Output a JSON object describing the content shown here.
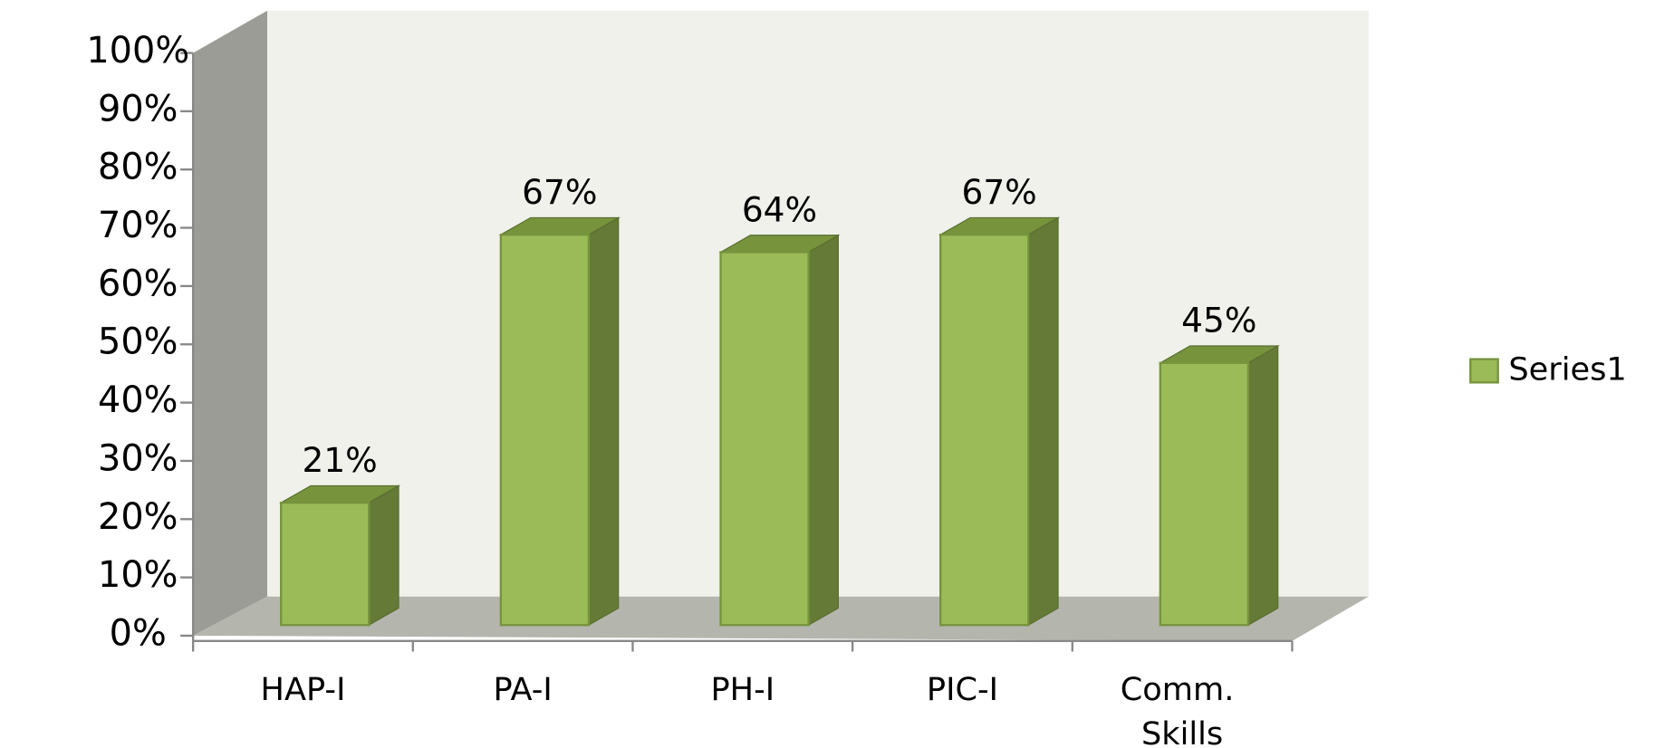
{
  "chart_data": {
    "type": "bar3d",
    "categories": [
      "HAP-I",
      "PA-I",
      "PH-I",
      "PIC-I",
      "Comm. Skills"
    ],
    "series": [
      {
        "name": "Series1",
        "color": "#9bbb59",
        "values": [
          21,
          67,
          64,
          67,
          45
        ],
        "value_labels": [
          "21%",
          "67%",
          "64%",
          "67%",
          "45%"
        ]
      }
    ],
    "ylim": [
      0,
      100
    ],
    "yticks": [
      {
        "value": 0,
        "label": "0%"
      },
      {
        "value": 10,
        "label": "10%"
      },
      {
        "value": 20,
        "label": "20%"
      },
      {
        "value": 30,
        "label": "30%"
      },
      {
        "value": 40,
        "label": "40%"
      },
      {
        "value": 50,
        "label": "50%"
      },
      {
        "value": 60,
        "label": "60%"
      },
      {
        "value": 70,
        "label": "70%"
      },
      {
        "value": 80,
        "label": "80%"
      },
      {
        "value": 90,
        "label": "90%"
      },
      {
        "value": 100,
        "label": "100%"
      }
    ],
    "grid": false,
    "legend": "right"
  }
}
